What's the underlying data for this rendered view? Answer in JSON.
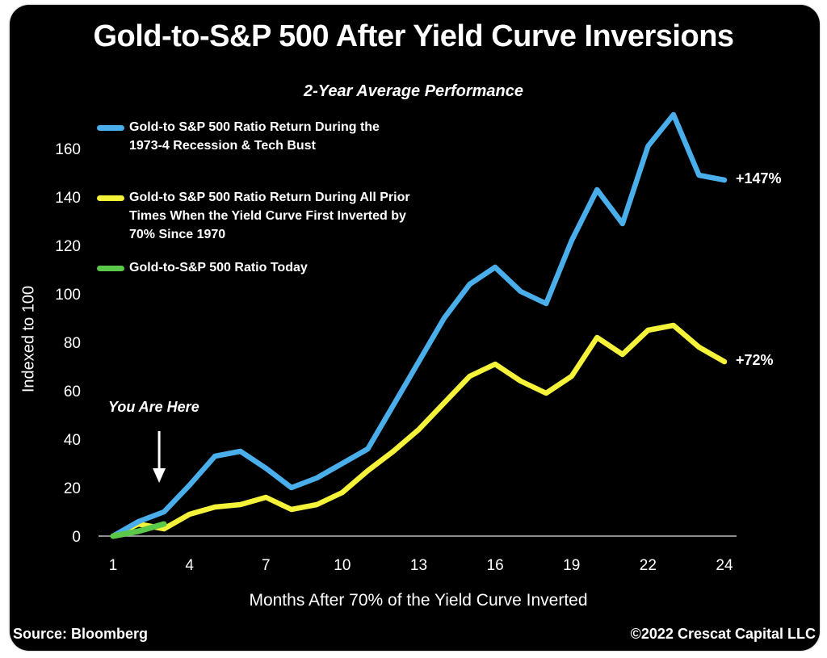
{
  "chart_data": {
    "type": "line",
    "title": "Gold-to-S&P 500 After Yield Curve Inversions",
    "subtitle": "2-Year Average Performance",
    "xlabel": "Months After 70% of the Yield Curve Inverted",
    "ylabel": "Indexed to 100",
    "ylim": [
      0,
      160
    ],
    "yticks": [
      0,
      20,
      40,
      60,
      80,
      100,
      120,
      140,
      160
    ],
    "x_points": 25,
    "xticks": [
      {
        "index": 0,
        "label": "1"
      },
      {
        "index": 3,
        "label": "4"
      },
      {
        "index": 6,
        "label": "7"
      },
      {
        "index": 9,
        "label": "10"
      },
      {
        "index": 12,
        "label": "13"
      },
      {
        "index": 15,
        "label": "16"
      },
      {
        "index": 18,
        "label": "19"
      },
      {
        "index": 21,
        "label": "22"
      },
      {
        "index": 24,
        "label": "24"
      }
    ],
    "grid": false,
    "legend_position": "top-left",
    "series": [
      {
        "name": "Gold-to S&P 500 Ratio Return During the 1973-4 Recession & Tech Bust",
        "legend_lines": [
          "Gold-to S&P 500 Ratio Return During the",
          "1973-4 Recession & Tech Bust"
        ],
        "color": "#4aaeea",
        "values": [
          0,
          6,
          10,
          21,
          33,
          35,
          28,
          20,
          24,
          30,
          36,
          54,
          72,
          90,
          104,
          111,
          101,
          96,
          122,
          143,
          129,
          161,
          174,
          149,
          147
        ],
        "end_label": "+147%"
      },
      {
        "name": "Gold-to S&P 500 Ratio Return During All Prior Times When the Yield Curve First Inverted by 70% Since 1970",
        "legend_lines": [
          "Gold-to S&P 500 Ratio Return During All Prior",
          "Times When the Yield Curve First Inverted by",
          "70% Since 1970"
        ],
        "color": "#f5f23a",
        "values": [
          0,
          5,
          3,
          9,
          12,
          13,
          16,
          11,
          13,
          18,
          27,
          35,
          44,
          55,
          66,
          71,
          64,
          59,
          66,
          82,
          75,
          85,
          87,
          78,
          72
        ],
        "end_label": "+72%"
      },
      {
        "name": "Gold-to-S&P 500 Ratio Today",
        "legend_lines": [
          "Gold-to-S&P 500 Ratio Today"
        ],
        "color": "#5cc84a",
        "values": [
          0,
          2,
          5
        ]
      }
    ],
    "annotations": [
      {
        "text": "You Are Here",
        "index": 2,
        "arrow": "down"
      }
    ]
  },
  "footer": {
    "source": "Source: Bloomberg",
    "copyright": "©2022 Crescat Capital LLC"
  }
}
